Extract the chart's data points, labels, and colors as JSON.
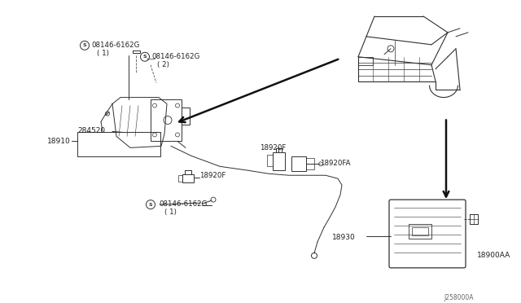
{
  "bg_color": "#ffffff",
  "fig_width": 6.4,
  "fig_height": 3.72,
  "diagram_code": "J258000A",
  "labels": {
    "screw1_text": "08146-6162G",
    "screw1_sub": "( 1)",
    "screw2_text": "08146-6162G",
    "screw2_sub": "( 2)",
    "screw3_text": "08146-6162G",
    "screw3_sub": "( 1)",
    "part_284520": "284520",
    "part_18910": "18910",
    "part_18920F_left": "18920F",
    "part_18920F_mid": "18920F",
    "part_18920FA": "18920FA",
    "part_18930": "18930",
    "part_18900AA": "18900AA"
  },
  "lc": "#303030",
  "tc": "#202020"
}
